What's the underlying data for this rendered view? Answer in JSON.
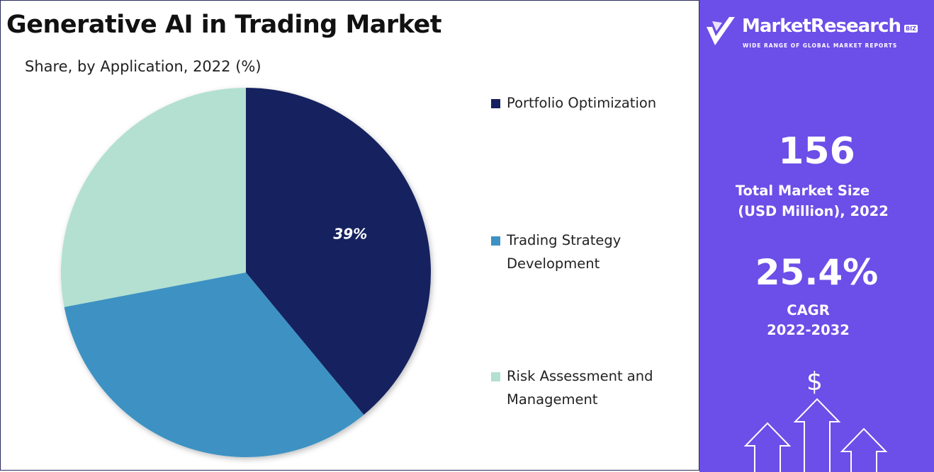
{
  "chart_data": {
    "type": "pie",
    "title": "Generative AI in Trading Market",
    "subtitle": "Share, by Application, 2022 (%)",
    "categories": [
      "Portfolio Optimization",
      "Trading Strategy Development",
      "Risk Assessment and Management"
    ],
    "values": [
      39,
      33,
      28
    ],
    "data_labels": [
      "39%",
      "",
      ""
    ],
    "colors": [
      "#16205e",
      "#3d92c3",
      "#b3e0d1"
    ],
    "legend_position": "right",
    "start_angle_deg": 0,
    "direction": "clockwise"
  },
  "legend": {
    "items": [
      {
        "line1": "Portfolio Optimization",
        "line2": ""
      },
      {
        "line1": "Trading Strategy",
        "line2": "Development"
      },
      {
        "line1": "Risk Assessment and",
        "line2": "Management"
      }
    ]
  },
  "brand": {
    "name": "MarketResearch",
    "badge": "BIZ",
    "tagline": "WIDE RANGE OF GLOBAL MARKET REPORTS",
    "panel_color": "#6c4ee8"
  },
  "stats": {
    "market_size_value": "156",
    "market_size_label_line1": "Total Market Size",
    "market_size_label_line2": "(USD Million), 2022",
    "cagr_value": "25.4%",
    "cagr_label_line1": "CAGR",
    "cagr_label_line2": "2022-2032"
  },
  "icons": {
    "dollar_symbol": "$",
    "logo_icon": "checkmark-v-icon",
    "growth_icon": "up-arrows-icon"
  }
}
